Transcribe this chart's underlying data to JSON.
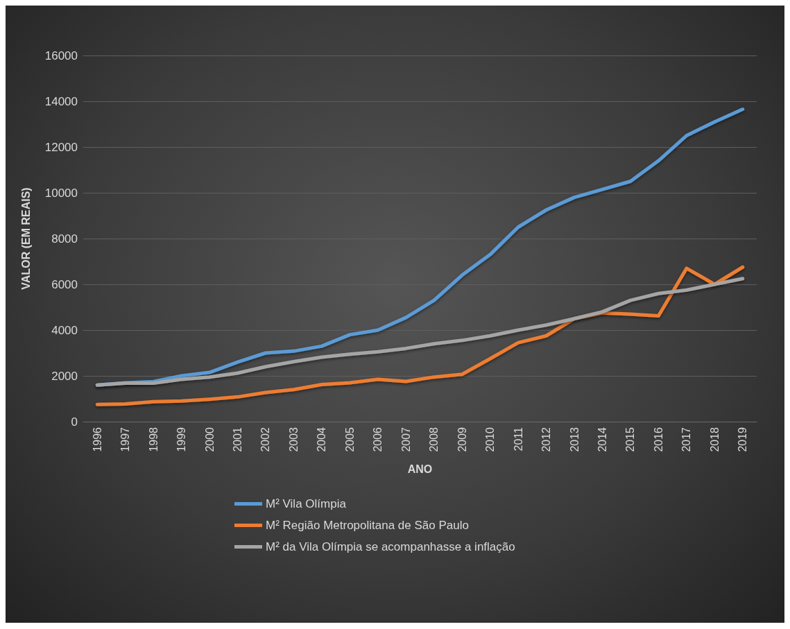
{
  "chart_data": {
    "type": "line",
    "xlabel": "ANO",
    "ylabel": "VALOR (EM REAIS)",
    "categories": [
      "1996",
      "1997",
      "1998",
      "1999",
      "2000",
      "2001",
      "2002",
      "2003",
      "2004",
      "2005",
      "2006",
      "2007",
      "2008",
      "2009",
      "2010",
      "2011",
      "2012",
      "2013",
      "2014",
      "2015",
      "2016",
      "2017",
      "2018",
      "2019"
    ],
    "series": [
      {
        "name": "M² Vila Olímpia",
        "color": "#5b9bd5",
        "values": [
          1600,
          1700,
          1750,
          2000,
          2150,
          2600,
          3000,
          3080,
          3300,
          3800,
          4000,
          4550,
          5300,
          6400,
          7300,
          8500,
          9250,
          9800,
          10150,
          10500,
          11400,
          12500,
          13100,
          13650
        ]
      },
      {
        "name": "M² Região Metropolitana de São Paulo",
        "color": "#ed7d31",
        "values": [
          750,
          770,
          870,
          900,
          980,
          1080,
          1270,
          1400,
          1620,
          1700,
          1850,
          1760,
          1950,
          2070,
          2750,
          3450,
          3750,
          4500,
          4750,
          4700,
          4620,
          6700,
          6000,
          6750
        ]
      },
      {
        "name": "M² da Vila Olímpia se acompanhasse a inflação",
        "color": "#a5a5a5",
        "values": [
          1600,
          1680,
          1680,
          1850,
          1950,
          2120,
          2400,
          2620,
          2820,
          2950,
          3050,
          3200,
          3400,
          3550,
          3750,
          4000,
          4220,
          4500,
          4800,
          5300,
          5600,
          5750,
          6000,
          6250
        ]
      }
    ],
    "ylim": [
      0,
      16000
    ],
    "yticks": [
      0,
      2000,
      4000,
      6000,
      8000,
      10000,
      12000,
      14000,
      16000
    ],
    "grid": "y",
    "legend": "bottom",
    "marker": "none",
    "line_style": "solid"
  }
}
